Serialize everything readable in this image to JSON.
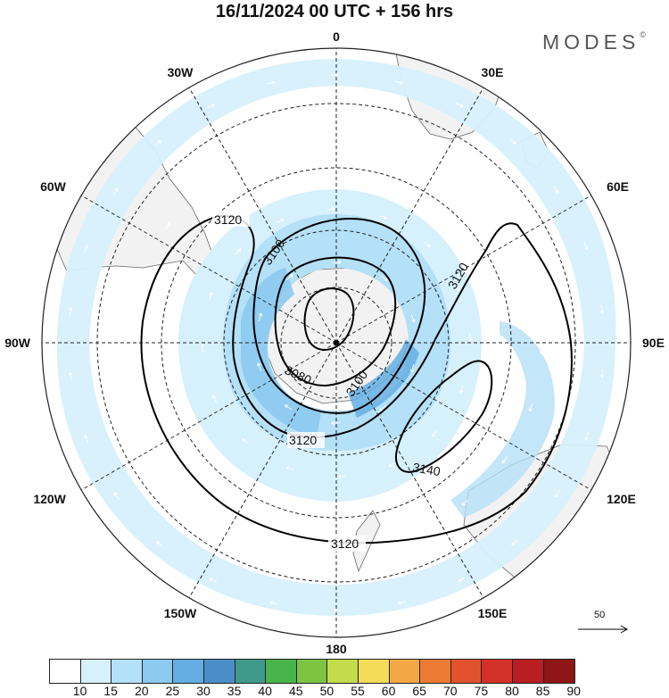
{
  "title": "16/11/2024  00 UTC  + 156 hrs",
  "logo": "MODES",
  "logo_mark": "©",
  "longitude_labels": [
    {
      "id": "lon-0",
      "text": "0",
      "angle": 0
    },
    {
      "id": "lon-30e",
      "text": "30E",
      "angle": 30
    },
    {
      "id": "lon-60e",
      "text": "60E",
      "angle": 60
    },
    {
      "id": "lon-90e",
      "text": "90E",
      "angle": 90
    },
    {
      "id": "lon-120e",
      "text": "120E",
      "angle": 120
    },
    {
      "id": "lon-150e",
      "text": "150E",
      "angle": 150
    },
    {
      "id": "lon-180",
      "text": "180",
      "angle": 180
    },
    {
      "id": "lon-150w",
      "text": "150W",
      "angle": 210
    },
    {
      "id": "lon-120w",
      "text": "120W",
      "angle": 240
    },
    {
      "id": "lon-90w",
      "text": "90W",
      "angle": 270
    },
    {
      "id": "lon-60w",
      "text": "60W",
      "angle": 300
    },
    {
      "id": "lon-30w",
      "text": "30W",
      "angle": 330
    }
  ],
  "contour_labels": [
    "3120",
    "3100",
    "3080",
    "3100",
    "3120",
    "3120",
    "3140",
    "3120"
  ],
  "reference_vector": {
    "label": "50"
  },
  "colorbar": {
    "colors": [
      "#ffffff",
      "#d6f0fc",
      "#b4e0f8",
      "#8ccaf0",
      "#64aee3",
      "#4a8ec8",
      "#3f9a8c",
      "#47b54a",
      "#7cc442",
      "#c4dc4a",
      "#f4dc5a",
      "#f4a845",
      "#ee7a34",
      "#e4512e",
      "#d4302a",
      "#b81e22",
      "#8e1616"
    ],
    "ticks": [
      "10",
      "15",
      "20",
      "25",
      "30",
      "35",
      "40",
      "45",
      "50",
      "55",
      "60",
      "65",
      "70",
      "75",
      "80",
      "85",
      "90"
    ]
  }
}
